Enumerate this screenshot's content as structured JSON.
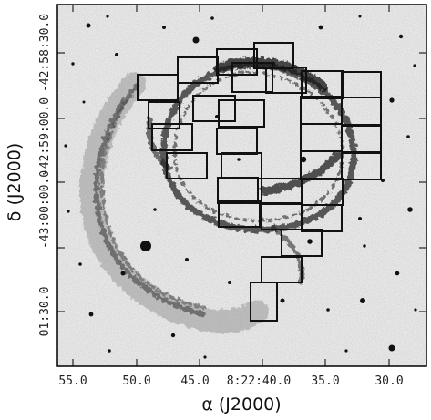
{
  "figure": {
    "x_axis_title": "α (J2000)",
    "y_axis_title": "δ (J2000)",
    "x_tick_labels": [
      "55.0",
      "50.0",
      "45.0",
      "8:22:40.0",
      "35.0",
      "30.0"
    ],
    "y_tick_labels": [
      "-42:58:30.0",
      "-42:59:00.0",
      "-43:00:00.0",
      "01:30.0"
    ],
    "colors": {
      "background": "#ffffff",
      "sky": "#ececec",
      "nebula": "#2a2a2a",
      "overlay_boxes": "#111111"
    }
  }
}
